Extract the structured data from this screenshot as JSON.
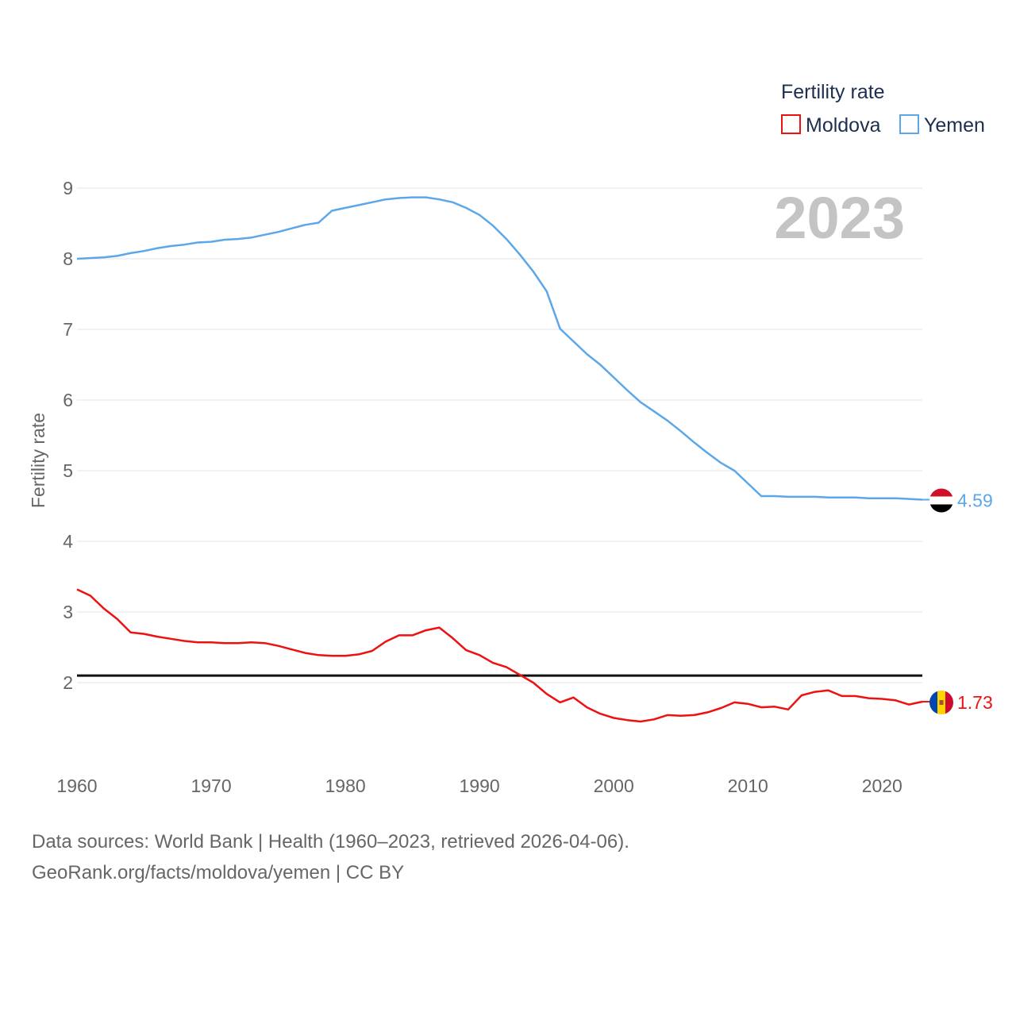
{
  "chart_data": {
    "type": "line",
    "year_label": "2023",
    "legend_title": "Fertility rate",
    "ylabel": "Fertility rate",
    "xlabel": "",
    "xlim": [
      1960,
      2023
    ],
    "ylim": [
      1,
      9.6
    ],
    "x_ticks": [
      1960,
      1970,
      1980,
      1990,
      2000,
      2010,
      2020
    ],
    "y_ticks": [
      2,
      3,
      4,
      5,
      6,
      7,
      8,
      9
    ],
    "reference_line": {
      "value": 2.1
    },
    "x": [
      1960,
      1961,
      1962,
      1963,
      1964,
      1965,
      1966,
      1967,
      1968,
      1969,
      1970,
      1971,
      1972,
      1973,
      1974,
      1975,
      1976,
      1977,
      1978,
      1979,
      1980,
      1981,
      1982,
      1983,
      1984,
      1985,
      1986,
      1987,
      1988,
      1989,
      1990,
      1991,
      1992,
      1993,
      1994,
      1995,
      1996,
      1997,
      1998,
      1999,
      2000,
      2001,
      2002,
      2003,
      2004,
      2005,
      2006,
      2007,
      2008,
      2009,
      2010,
      2011,
      2012,
      2013,
      2014,
      2015,
      2016,
      2017,
      2018,
      2019,
      2020,
      2021,
      2022,
      2023
    ],
    "series": [
      {
        "name": "Moldova",
        "color": "#ee1111",
        "end_label": "1.73",
        "flag": "moldova-flag",
        "values": [
          3.32,
          3.23,
          3.05,
          2.9,
          2.71,
          2.69,
          2.65,
          2.62,
          2.59,
          2.57,
          2.57,
          2.56,
          2.56,
          2.57,
          2.56,
          2.52,
          2.47,
          2.42,
          2.39,
          2.38,
          2.38,
          2.4,
          2.45,
          2.58,
          2.67,
          2.67,
          2.74,
          2.78,
          2.63,
          2.46,
          2.39,
          2.28,
          2.22,
          2.11,
          2.0,
          1.84,
          1.72,
          1.79,
          1.65,
          1.56,
          1.5,
          1.47,
          1.45,
          1.48,
          1.54,
          1.53,
          1.54,
          1.58,
          1.64,
          1.72,
          1.7,
          1.65,
          1.66,
          1.62,
          1.82,
          1.87,
          1.89,
          1.81,
          1.81,
          1.78,
          1.77,
          1.75,
          1.69,
          1.73
        ]
      },
      {
        "name": "Yemen",
        "color": "#5ca7ea",
        "end_label": "4.59",
        "flag": "yemen-flag",
        "values": [
          8.0,
          8.01,
          8.02,
          8.04,
          8.08,
          8.11,
          8.15,
          8.18,
          8.2,
          8.23,
          8.24,
          8.27,
          8.28,
          8.3,
          8.34,
          8.38,
          8.43,
          8.48,
          8.51,
          8.68,
          8.72,
          8.76,
          8.8,
          8.84,
          8.86,
          8.87,
          8.87,
          8.84,
          8.8,
          8.72,
          8.62,
          8.47,
          8.28,
          8.06,
          7.82,
          7.54,
          7.01,
          6.83,
          6.65,
          6.5,
          6.32,
          6.14,
          5.97,
          5.84,
          5.71,
          5.56,
          5.4,
          5.25,
          5.11,
          5.0,
          4.82,
          4.64,
          4.64,
          4.63,
          4.63,
          4.63,
          4.62,
          4.62,
          4.62,
          4.61,
          4.61,
          4.61,
          4.6,
          4.59
        ]
      }
    ]
  },
  "sources": {
    "line1": "Data sources: World Bank | Health (1960–2023, retrieved 2026-04-06).",
    "line2": "GeoRank.org/facts/moldova/yemen | CC BY"
  }
}
